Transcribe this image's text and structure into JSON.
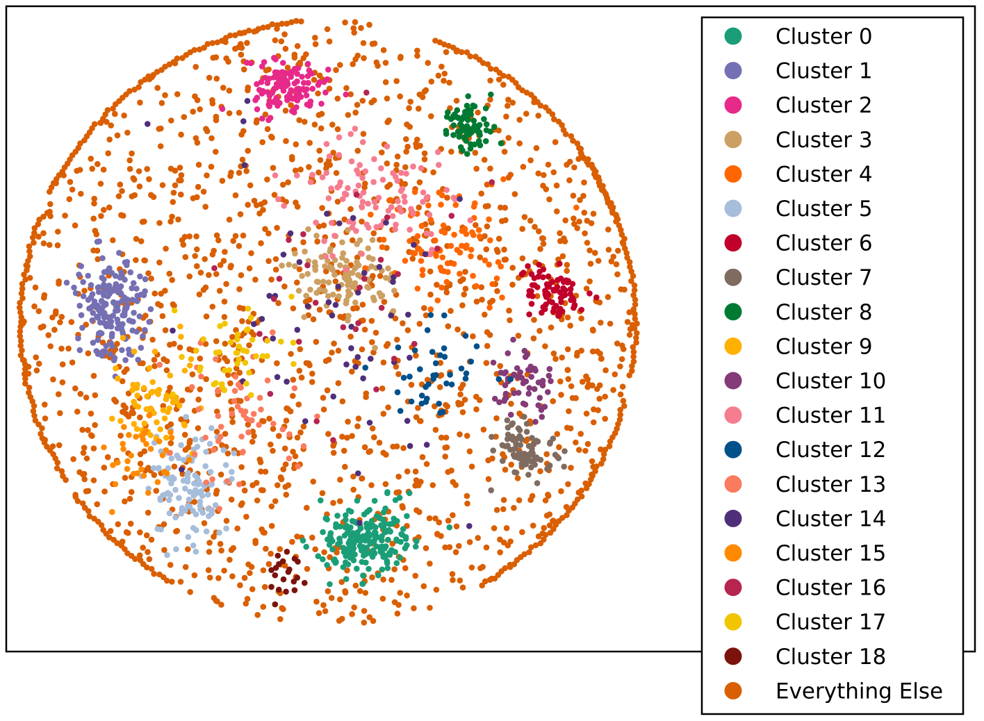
{
  "chart_data": {
    "type": "scatter",
    "title": "",
    "xlabel": "",
    "ylabel": "",
    "axes_ticks": "none",
    "grid": false,
    "legend_position": "right",
    "colors": {
      "Cluster 0": "#1b9e77",
      "Cluster 1": "#7570b3",
      "Cluster 2": "#e7298a",
      "Cluster 3": "#cc9f62",
      "Cluster 4": "#ff6600",
      "Cluster 5": "#a6bddb",
      "Cluster 6": "#c0002a",
      "Cluster 7": "#7f6b60",
      "Cluster 8": "#007a33",
      "Cluster 9": "#ffb000",
      "Cluster 10": "#843b77",
      "Cluster 11": "#f67c8f",
      "Cluster 12": "#00508a",
      "Cluster 13": "#fb7b5e",
      "Cluster 14": "#4f2f7a",
      "Cluster 15": "#ff8a00",
      "Cluster 16": "#b5254f",
      "Cluster 17": "#f2c500",
      "Cluster 18": "#7b130d",
      "Everything Else": "#d95f02"
    },
    "legend": [
      "Cluster 0",
      "Cluster 1",
      "Cluster 2",
      "Cluster 3",
      "Cluster 4",
      "Cluster 5",
      "Cluster 6",
      "Cluster 7",
      "Cluster 8",
      "Cluster 9",
      "Cluster 10",
      "Cluster 11",
      "Cluster 12",
      "Cluster 13",
      "Cluster 14",
      "Cluster 15",
      "Cluster 16",
      "Cluster 17",
      "Cluster 18",
      "Everything Else"
    ],
    "series": [
      {
        "name": "Cluster 0",
        "centers": [
          [
            0.56,
            0.14
          ]
        ],
        "spread": [
          0.06,
          0.045
        ],
        "count": 200
      },
      {
        "name": "Cluster 1",
        "centers": [
          [
            0.15,
            0.53
          ]
        ],
        "spread": [
          0.05,
          0.07
        ],
        "count": 170
      },
      {
        "name": "Cluster 2",
        "centers": [
          [
            0.43,
            0.89
          ]
        ],
        "spread": [
          0.05,
          0.035
        ],
        "count": 110
      },
      {
        "name": "Cluster 3",
        "centers": [
          [
            0.53,
            0.57
          ]
        ],
        "spread": [
          0.07,
          0.06
        ],
        "count": 110
      },
      {
        "name": "Cluster 4",
        "centers": [
          [
            0.7,
            0.63
          ]
        ],
        "spread": [
          0.09,
          0.08
        ],
        "count": 90
      },
      {
        "name": "Cluster 5",
        "centers": [
          [
            0.28,
            0.23
          ]
        ],
        "spread": [
          0.06,
          0.08
        ],
        "count": 110
      },
      {
        "name": "Cluster 6",
        "centers": [
          [
            0.87,
            0.55
          ]
        ],
        "spread": [
          0.04,
          0.035
        ],
        "count": 75
      },
      {
        "name": "Cluster 7",
        "centers": [
          [
            0.82,
            0.29
          ]
        ],
        "spread": [
          0.04,
          0.04
        ],
        "count": 80
      },
      {
        "name": "Cluster 8",
        "centers": [
          [
            0.73,
            0.83
          ]
        ],
        "spread": [
          0.03,
          0.04
        ],
        "count": 75
      },
      {
        "name": "Cluster 9",
        "centers": [
          [
            0.22,
            0.38
          ]
        ],
        "spread": [
          0.05,
          0.07
        ],
        "count": 60
      },
      {
        "name": "Cluster 10",
        "centers": [
          [
            0.82,
            0.4
          ]
        ],
        "spread": [
          0.04,
          0.04
        ],
        "count": 55
      },
      {
        "name": "Cluster 11",
        "centers": [
          [
            0.57,
            0.7
          ]
        ],
        "spread": [
          0.12,
          0.08
        ],
        "count": 100
      },
      {
        "name": "Cluster 12",
        "centers": [
          [
            0.68,
            0.42
          ]
        ],
        "spread": [
          0.07,
          0.06
        ],
        "count": 40
      },
      {
        "name": "Cluster 13",
        "centers": [
          [
            0.33,
            0.35
          ]
        ],
        "spread": [
          0.09,
          0.09
        ],
        "count": 55
      },
      {
        "name": "Cluster 14",
        "centers": [
          [
            0.5,
            0.5
          ]
        ],
        "spread": [
          0.18,
          0.22
        ],
        "count": 55
      },
      {
        "name": "Cluster 15",
        "centers": [
          [
            0.2,
            0.28
          ]
        ],
        "spread": [
          0.05,
          0.06
        ],
        "count": 35
      },
      {
        "name": "Cluster 16",
        "centers": [
          [
            0.5,
            0.55
          ]
        ],
        "spread": [
          0.17,
          0.2
        ],
        "count": 30
      },
      {
        "name": "Cluster 17",
        "centers": [
          [
            0.35,
            0.45
          ]
        ],
        "spread": [
          0.08,
          0.07
        ],
        "count": 45
      },
      {
        "name": "Cluster 18",
        "centers": [
          [
            0.43,
            0.08
          ]
        ],
        "spread": [
          0.03,
          0.03
        ],
        "count": 20
      },
      {
        "name": "Everything Else",
        "centers": [
          [
            0.5,
            0.5
          ]
        ],
        "spread": [
          0.5,
          0.5
        ],
        "count": 1500
      }
    ]
  }
}
